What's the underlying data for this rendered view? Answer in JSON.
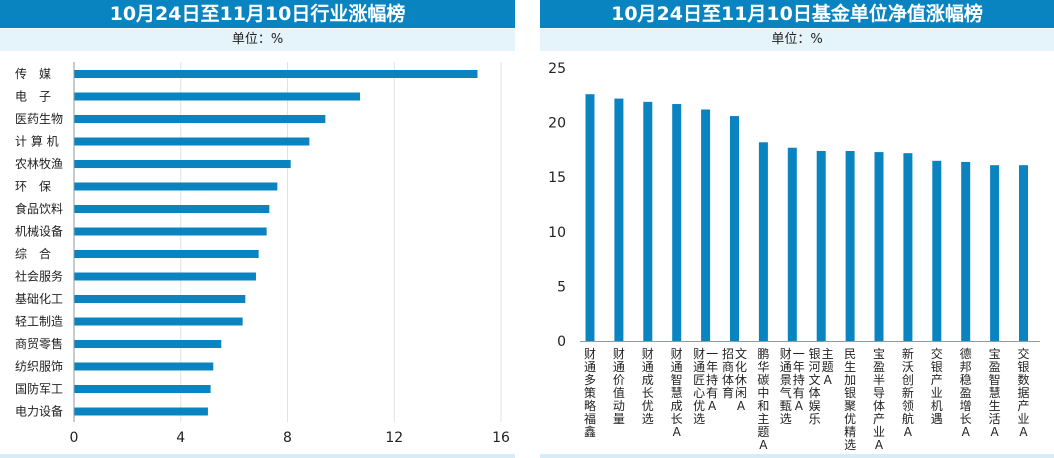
{
  "chart_data": [
    {
      "type": "bar",
      "orientation": "horizontal",
      "title": "10月24日至11月10日行业涨幅榜",
      "unit": "单位：%",
      "categories": [
        "传　媒",
        "电　子",
        "医药生物",
        "计 算 机",
        "农林牧渔",
        "环　保",
        "食品饮料",
        "机械设备",
        "综　合",
        "社会服务",
        "基础化工",
        "轻工制造",
        "商贸零售",
        "纺织服饰",
        "国防军工",
        "电力设备"
      ],
      "values": [
        15.1,
        10.7,
        9.4,
        8.8,
        8.1,
        7.6,
        7.3,
        7.2,
        6.9,
        6.8,
        6.4,
        6.3,
        5.5,
        5.2,
        5.1,
        5.0
      ],
      "xlim": [
        0,
        16
      ],
      "xticks": [
        "0",
        "4",
        "8",
        "12",
        "16"
      ],
      "grid": true,
      "color": "#0a84c1"
    },
    {
      "type": "bar",
      "orientation": "vertical",
      "title": "10月24日至11月10日基金单位净值涨幅榜",
      "unit": "单位：%",
      "categories": [
        [
          "财通多策略福鑫"
        ],
        [
          "财通价值动量"
        ],
        [
          "财通成长优选"
        ],
        [
          "财通智慧成长A"
        ],
        [
          "财通匠心优选",
          "一年持有A"
        ],
        [
          "招商体育",
          "文化休闲A"
        ],
        [
          "鹏华碳中和主题A"
        ],
        [
          "财通景气甄选",
          "一年持有A"
        ],
        [
          "银河文体娱乐",
          "主题A"
        ],
        [
          "民生加银聚优精选"
        ],
        [
          "宝盈半导体产业A"
        ],
        [
          "新沃创新领航A"
        ],
        [
          "交银产业机遇"
        ],
        [
          "德邦稳盈增长A"
        ],
        [
          "宝盈智慧生活A"
        ],
        [
          "交银数据产业A"
        ]
      ],
      "values": [
        22.6,
        22.2,
        21.9,
        21.7,
        21.2,
        20.6,
        18.2,
        17.7,
        17.4,
        17.4,
        17.3,
        17.2,
        16.5,
        16.4,
        16.1,
        16.1
      ],
      "ylim": [
        0,
        25
      ],
      "yticks": [
        "0",
        "5",
        "10",
        "15",
        "20",
        "25"
      ],
      "grid": false,
      "color": "#0a84c1"
    }
  ]
}
